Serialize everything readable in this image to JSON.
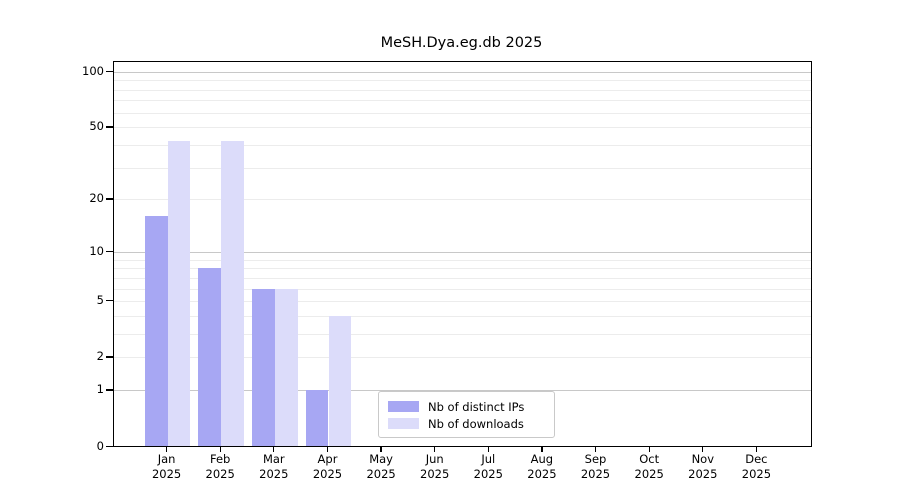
{
  "chart_data": {
    "type": "bar",
    "title": "MeSH.Dya.eg.db 2025",
    "xlabel": "",
    "ylabel": "",
    "categories": [
      "Jan 2025",
      "Feb 2025",
      "Mar 2025",
      "Apr 2025",
      "May 2025",
      "Jun 2025",
      "Jul 2025",
      "Aug 2025",
      "Sep 2025",
      "Oct 2025",
      "Nov 2025",
      "Dec 2025"
    ],
    "series": [
      {
        "name": "Nb of distinct IPs",
        "color": "#a7a7f3",
        "values": [
          16,
          8,
          6,
          1,
          null,
          null,
          null,
          null,
          null,
          null,
          null,
          null
        ]
      },
      {
        "name": "Nb of downloads",
        "color": "#dcdcfa",
        "values": [
          42,
          42,
          6,
          4,
          null,
          null,
          null,
          null,
          null,
          null,
          null,
          null
        ]
      }
    ],
    "yscale": "log1p",
    "ylim": [
      0,
      113
    ],
    "y_ticks": [
      0,
      1,
      2,
      5,
      10,
      20,
      50,
      100
    ],
    "major_gridlines": [
      1,
      10,
      100
    ],
    "minor_gridlines": [
      2,
      3,
      4,
      5,
      6,
      7,
      8,
      9,
      20,
      30,
      40,
      50,
      60,
      70,
      80,
      90
    ],
    "grid": "horizontal",
    "legend_position": "lower-center",
    "colors": {
      "major_grid": "#c8c8c8",
      "minor_grid": "#ececec",
      "spine": "#000000",
      "background": "#ffffff",
      "text": "#000000"
    }
  }
}
